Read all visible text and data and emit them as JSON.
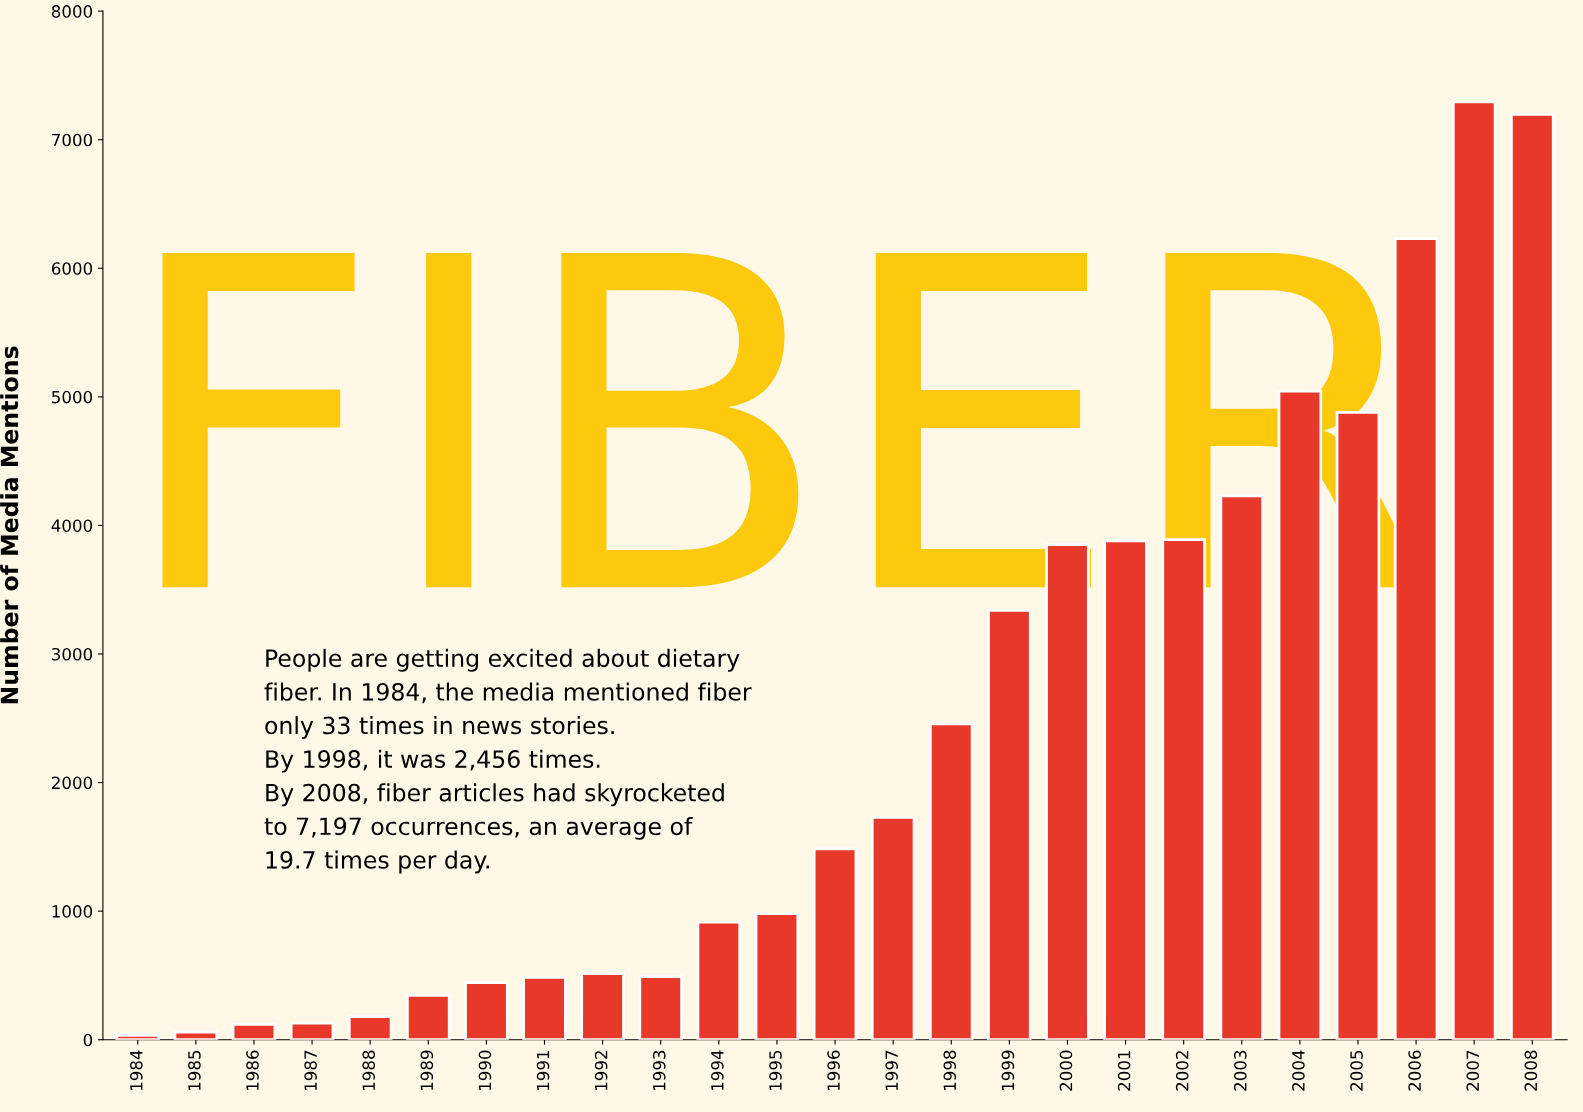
{
  "chart_data": {
    "type": "bar",
    "title": "FIBER",
    "ylabel": "Number of Media Mentions",
    "categories": [
      "1984",
      "1985",
      "1986",
      "1987",
      "1988",
      "1989",
      "1990",
      "1991",
      "1992",
      "1993",
      "1994",
      "1995",
      "1996",
      "1997",
      "1998",
      "1999",
      "2000",
      "2001",
      "2002",
      "2003",
      "2004",
      "2005",
      "2006",
      "2007",
      "2008"
    ],
    "values": [
      33,
      60,
      120,
      130,
      180,
      345,
      445,
      485,
      515,
      490,
      915,
      980,
      1485,
      1730,
      2456,
      3340,
      3850,
      3880,
      3890,
      4230,
      5045,
      4880,
      6230,
      7295,
      7197
    ],
    "color": "#e8382a",
    "ylim": [
      0,
      8000
    ],
    "yticks": [
      0,
      1000,
      2000,
      3000,
      4000,
      5000,
      6000,
      7000,
      8000
    ],
    "grid": false,
    "legend": false,
    "annotations": [
      "People are getting excited about dietary\nfiber. In 1984, the media mentioned fiber\nonly 33 times in news stories.\nBy 1998, it was 2,456 times.\nBy 2008, fiber articles had skyrocketed\nto 7,197 occurrences, an average of\n19.7 times per day."
    ]
  }
}
